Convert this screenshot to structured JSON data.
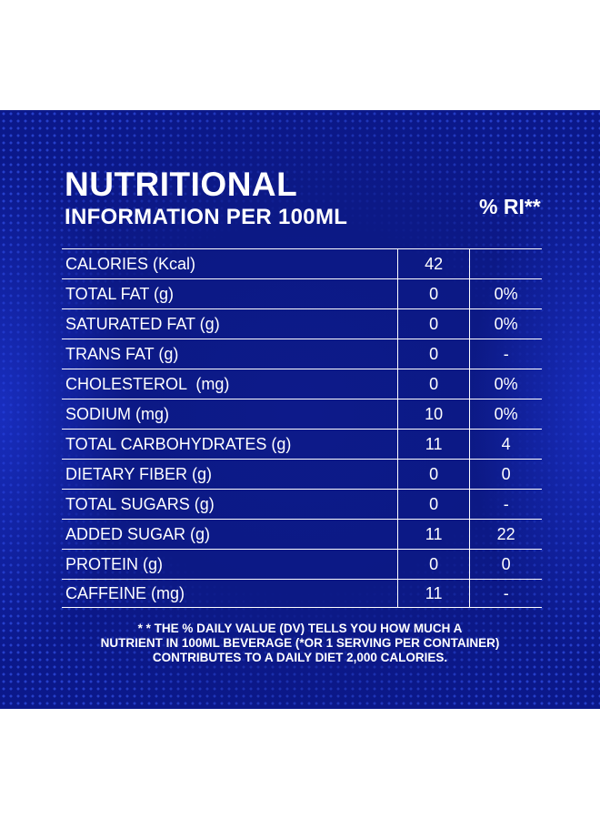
{
  "header": {
    "title_line1": "NUTRITIONAL",
    "title_line2": "INFORMATION PER 100ML",
    "ri_label": "% RI**"
  },
  "rows": [
    {
      "name": "CALORIES (Kcal)",
      "value": "42",
      "ri": ""
    },
    {
      "name": "TOTAL FAT (g)",
      "value": "0",
      "ri": "0%"
    },
    {
      "name": "SATURATED FAT (g)",
      "value": "0",
      "ri": "0%"
    },
    {
      "name": "TRANS FAT (g)",
      "value": "0",
      "ri": "-"
    },
    {
      "name": "CHOLESTEROL  (mg)",
      "value": "0",
      "ri": "0%"
    },
    {
      "name": "SODIUM (mg)",
      "value": "10",
      "ri": "0%"
    },
    {
      "name": "TOTAL CARBOHYDRATES (g)",
      "value": "11",
      "ri": "4"
    },
    {
      "name": "DIETARY FIBER (g)",
      "value": "0",
      "ri": "0"
    },
    {
      "name": "TOTAL SUGARS (g)",
      "value": "0",
      "ri": "-"
    },
    {
      "name": "ADDED SUGAR (g)",
      "value": "11",
      "ri": "22"
    },
    {
      "name": "PROTEIN (g)",
      "value": "0",
      "ri": "0"
    },
    {
      "name": "CAFFEINE (mg)",
      "value": "11",
      "ri": "-"
    }
  ],
  "footnote": {
    "line1": "* * THE % DAILY VALUE (DV) TELLS YOU HOW MUCH A",
    "line2": "NUTRIENT IN 100ML BEVERAGE (*OR 1 SERVING PER CONTAINER)",
    "line3": "CONTRIBUTES TO A DAILY DIET 2,000 CALORIES."
  },
  "colors": {
    "background": "#0b188a",
    "text": "#ffffff",
    "page": "#ffffff"
  }
}
